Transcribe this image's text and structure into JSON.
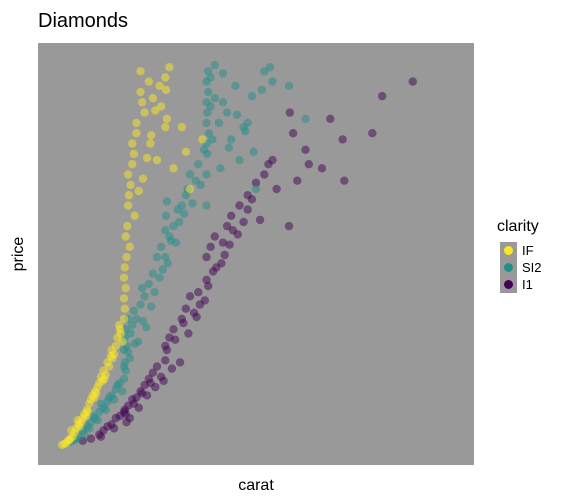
{
  "chart_data": {
    "type": "scatter",
    "title": "Diamonds",
    "xlabel": "carat",
    "ylabel": "price",
    "x_ticks_shown": false,
    "y_ticks_shown": false,
    "grid": false,
    "panel_background": "#999999",
    "xlim": [
      0.2,
      5.0
    ],
    "ylim": [
      300,
      19000
    ],
    "point_alpha": 0.5,
    "legend": {
      "title": "clarity",
      "position": "right",
      "entries": [
        {
          "label": "IF",
          "color": "#FDE725"
        },
        {
          "label": "SI2",
          "color": "#21908C"
        },
        {
          "label": "I1",
          "color": "#440154"
        }
      ]
    },
    "series": [
      {
        "name": "I1",
        "color": "#440154",
        "x": [
          0.5,
          0.6,
          0.7,
          0.75,
          0.8,
          0.85,
          0.9,
          0.95,
          1.0,
          1.01,
          1.05,
          1.1,
          1.15,
          1.2,
          1.25,
          1.3,
          1.35,
          1.4,
          1.5,
          1.5,
          1.55,
          1.6,
          1.7,
          1.75,
          1.8,
          1.9,
          2.0,
          2.0,
          2.05,
          2.1,
          2.2,
          2.25,
          2.3,
          2.4,
          2.5,
          2.5,
          2.6,
          2.7,
          2.75,
          2.8,
          3.0,
          3.01,
          3.05,
          3.1,
          3.2,
          3.24,
          3.4,
          3.5,
          3.65,
          3.67,
          4.01,
          4.13,
          4.5,
          0.72,
          0.88,
          1.02,
          1.12,
          1.22,
          1.32,
          1.45,
          1.52,
          1.62,
          1.72,
          1.85,
          1.92,
          2.02,
          2.12,
          2.22,
          2.32,
          2.45,
          2.55,
          2.65,
          2.85,
          1.03,
          1.07,
          1.18,
          1.28,
          1.38,
          1.48,
          1.58,
          1.68,
          1.78,
          1.88,
          1.98,
          2.08,
          2.18,
          2.28,
          2.38
        ],
        "y": [
          600,
          700,
          900,
          1100,
          1300,
          1400,
          1700,
          1800,
          2000,
          2100,
          2300,
          2600,
          2700,
          3000,
          3300,
          3600,
          3900,
          4200,
          4500,
          5200,
          5600,
          6000,
          6500,
          7000,
          7600,
          7800,
          8400,
          9500,
          10000,
          10500,
          10200,
          11000,
          11500,
          12000,
          11800,
          12500,
          13100,
          13500,
          14000,
          14200,
          11000,
          16500,
          15500,
          13200,
          14700,
          14000,
          13800,
          16200,
          15200,
          13200,
          15500,
          17300,
          18000,
          800,
          1200,
          1900,
          2400,
          2900,
          3400,
          3700,
          5000,
          5500,
          6300,
          6800,
          7200,
          8100,
          9000,
          9600,
          10800,
          11200,
          12300,
          11300,
          12800,
          1500,
          1700,
          2200,
          2800,
          3200,
          3500,
          4100,
          4400,
          5800,
          6600,
          7400,
          8800,
          9200,
          10100,
          10600
        ]
      },
      {
        "name": "SI2",
        "color": "#21908C",
        "x": [
          0.3,
          0.35,
          0.4,
          0.45,
          0.5,
          0.55,
          0.6,
          0.65,
          0.7,
          0.75,
          0.8,
          0.85,
          0.9,
          0.95,
          1.0,
          1.0,
          1.0,
          1.01,
          1.01,
          1.02,
          1.02,
          1.03,
          1.05,
          1.05,
          1.08,
          1.1,
          1.12,
          1.15,
          1.2,
          1.22,
          1.25,
          1.3,
          1.35,
          1.4,
          1.45,
          1.5,
          1.5,
          1.51,
          1.52,
          1.55,
          1.6,
          1.65,
          1.7,
          1.75,
          1.8,
          1.9,
          2.0,
          2.0,
          2.0,
          2.0,
          2.0,
          2.0,
          2.01,
          2.01,
          2.02,
          2.02,
          2.03,
          2.05,
          2.05,
          2.1,
          2.1,
          2.15,
          2.2,
          2.2,
          2.25,
          2.3,
          2.35,
          2.4,
          2.45,
          2.5,
          2.55,
          2.6,
          2.7,
          2.8,
          3.0,
          3.2,
          0.62,
          0.72,
          0.82,
          0.92,
          1.07,
          1.17,
          1.27,
          1.37,
          1.47,
          1.57,
          1.67,
          1.77,
          1.87,
          1.97,
          2.07,
          2.17,
          2.27,
          2.37,
          2.47,
          2.57,
          2.67,
          2.77,
          0.42,
          0.52,
          0.58,
          0.68,
          0.78,
          0.88,
          0.98,
          1.13,
          1.23,
          1.33,
          1.43,
          1.53,
          1.63,
          1.73,
          1.83,
          1.93
        ],
        "y": [
          500,
          550,
          650,
          800,
          1100,
          1300,
          1500,
          1700,
          2000,
          2200,
          2500,
          2800,
          3100,
          3400,
          3600,
          4200,
          5000,
          4400,
          5600,
          4000,
          6000,
          5200,
          4900,
          6500,
          5800,
          6200,
          6900,
          6500,
          7200,
          8000,
          7600,
          8200,
          8700,
          9500,
          10000,
          9500,
          10800,
          11500,
          12200,
          10500,
          11000,
          11800,
          12000,
          12500,
          13500,
          14000,
          12000,
          13500,
          15000,
          16000,
          17000,
          18000,
          14500,
          16500,
          17500,
          18500,
          15500,
          16800,
          18200,
          17200,
          18800,
          16000,
          17000,
          18400,
          16500,
          15200,
          17800,
          14200,
          15800,
          16000,
          17300,
          12800,
          18500,
          18000,
          17800,
          16200,
          1800,
          2400,
          2700,
          3300,
          4600,
          5400,
          6100,
          7800,
          8900,
          10300,
          11200,
          12800,
          13200,
          14700,
          15200,
          13800,
          14800,
          16400,
          15600,
          14600,
          17600,
          18700,
          700,
          900,
          1200,
          1600,
          2100,
          2600,
          3000,
          5300,
          6400,
          7100,
          8500,
          9200,
          10200,
          11600,
          12100,
          13000
        ]
      },
      {
        "name": "IF",
        "color": "#FDE725",
        "x": [
          0.25,
          0.3,
          0.32,
          0.35,
          0.38,
          0.4,
          0.42,
          0.45,
          0.48,
          0.5,
          0.52,
          0.55,
          0.58,
          0.6,
          0.62,
          0.65,
          0.68,
          0.7,
          0.72,
          0.75,
          0.78,
          0.8,
          0.82,
          0.85,
          0.88,
          0.9,
          0.92,
          0.95,
          0.98,
          1.0,
          1.0,
          1.0,
          1.01,
          1.01,
          1.02,
          1.02,
          1.03,
          1.04,
          1.05,
          1.05,
          1.06,
          1.08,
          1.1,
          1.1,
          1.12,
          1.15,
          1.15,
          1.2,
          1.2,
          1.22,
          1.25,
          1.3,
          1.32,
          1.35,
          1.4,
          1.45,
          1.5,
          1.5,
          1.51,
          1.52,
          1.55,
          1.6,
          1.7,
          1.75,
          1.8,
          1.95,
          0.36,
          0.44,
          0.56,
          0.66,
          0.76,
          0.86,
          0.96,
          1.07,
          1.13,
          1.18,
          1.23,
          1.28,
          1.33,
          1.38,
          1.43,
          0.28,
          0.34,
          0.46,
          0.54,
          0.64,
          0.74,
          0.84,
          0.94
        ],
        "y": [
          400,
          500,
          600,
          700,
          800,
          1000,
          1200,
          1400,
          1500,
          1700,
          1900,
          2100,
          2400,
          2600,
          2800,
          3000,
          3200,
          3400,
          3700,
          4000,
          3800,
          4400,
          4200,
          5000,
          4800,
          5200,
          5600,
          6000,
          5400,
          6500,
          7500,
          8500,
          7000,
          9000,
          8000,
          10500,
          9500,
          11000,
          12000,
          13500,
          12500,
          13000,
          14000,
          15000,
          14500,
          16000,
          15500,
          17500,
          18500,
          17000,
          16500,
          18000,
          15000,
          17200,
          14200,
          16800,
          18200,
          15800,
          17600,
          16200,
          18700,
          13800,
          15800,
          14600,
          12800,
          15200,
          1100,
          1600,
          2000,
          2900,
          3600,
          4600,
          5800,
          10000,
          11500,
          12700,
          13300,
          14300,
          15400,
          16600,
          17800,
          450,
          650,
          1300,
          1800,
          2700,
          3500,
          4700,
          6200
        ]
      }
    ]
  }
}
